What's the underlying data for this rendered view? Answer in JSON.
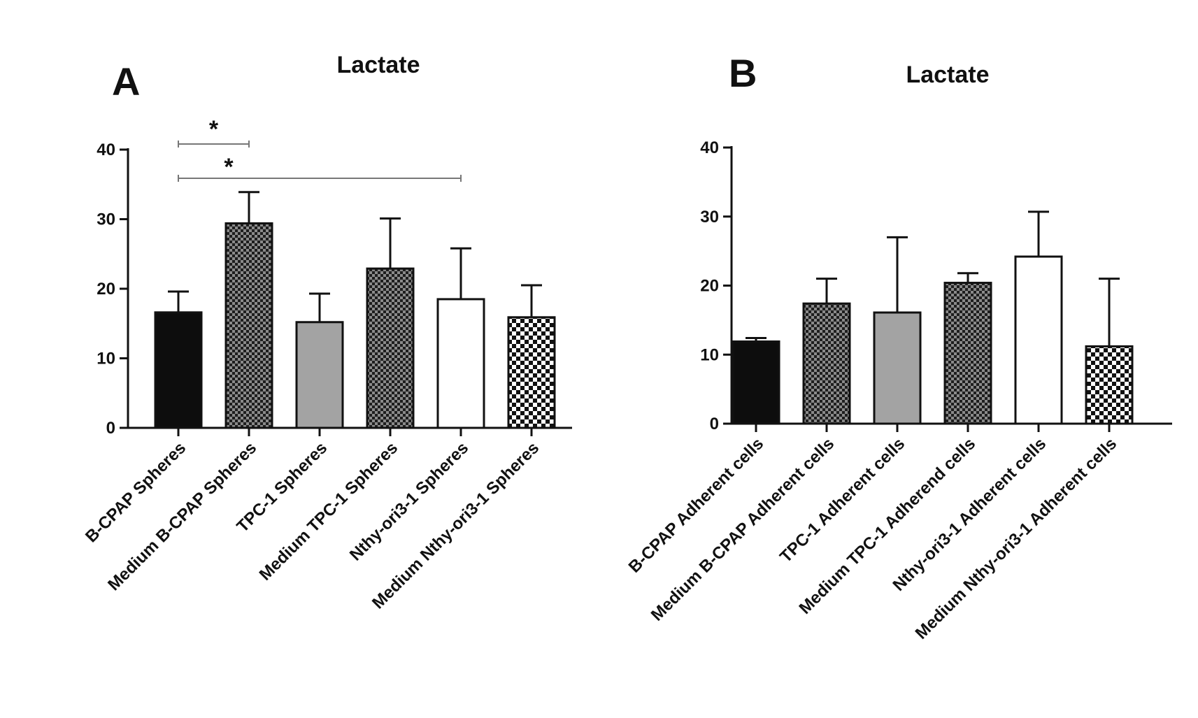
{
  "chart_data": [
    {
      "panel": "A",
      "type": "bar",
      "title": "Lactate",
      "xlabel": "",
      "ylabel": "",
      "ylim": [
        0,
        40
      ],
      "yticks": [
        "0",
        "10",
        "20",
        "30",
        "40"
      ],
      "categories": [
        "B-CPAP Spheres",
        "Medium B-CPAP Spheres",
        "TPC-1 Spheres",
        "Medium TPC-1 Spheres",
        "Nthy-ori3-1 Spheres",
        "Medium Nthy-ori3-1 Spheres"
      ],
      "values": [
        16.6,
        29.4,
        15.2,
        22.9,
        18.5,
        15.9
      ],
      "errors": [
        3.0,
        4.5,
        4.1,
        7.2,
        7.3,
        4.6
      ],
      "fills": [
        "solid-black",
        "checker-dark",
        "solid-gray",
        "checker-dark",
        "solid-white",
        "checker-light"
      ],
      "significance": [
        {
          "from": 0,
          "to": 1,
          "label": "*"
        },
        {
          "from": 0,
          "to": 4,
          "label": "*"
        }
      ]
    },
    {
      "panel": "B",
      "type": "bar",
      "title": "Lactate",
      "xlabel": "",
      "ylabel": "",
      "ylim": [
        0,
        40
      ],
      "yticks": [
        "0",
        "10",
        "20",
        "30",
        "40"
      ],
      "categories": [
        "B-CPAP Adherent cells",
        "Medium B-CPAP Adherent cells",
        "TPC-1 Adherent cells",
        "Medium TPC-1 Adherend cells",
        "Nthy-ori3-1 Adherent cells",
        "Medium Nthy-ori3-1 Adherent cells"
      ],
      "values": [
        11.9,
        17.4,
        16.1,
        20.4,
        24.2,
        11.2
      ],
      "errors": [
        0.5,
        3.6,
        10.9,
        1.4,
        6.5,
        9.8
      ],
      "fills": [
        "solid-black",
        "checker-dark",
        "solid-gray",
        "checker-dark",
        "solid-white",
        "checker-light"
      ],
      "significance": []
    }
  ]
}
